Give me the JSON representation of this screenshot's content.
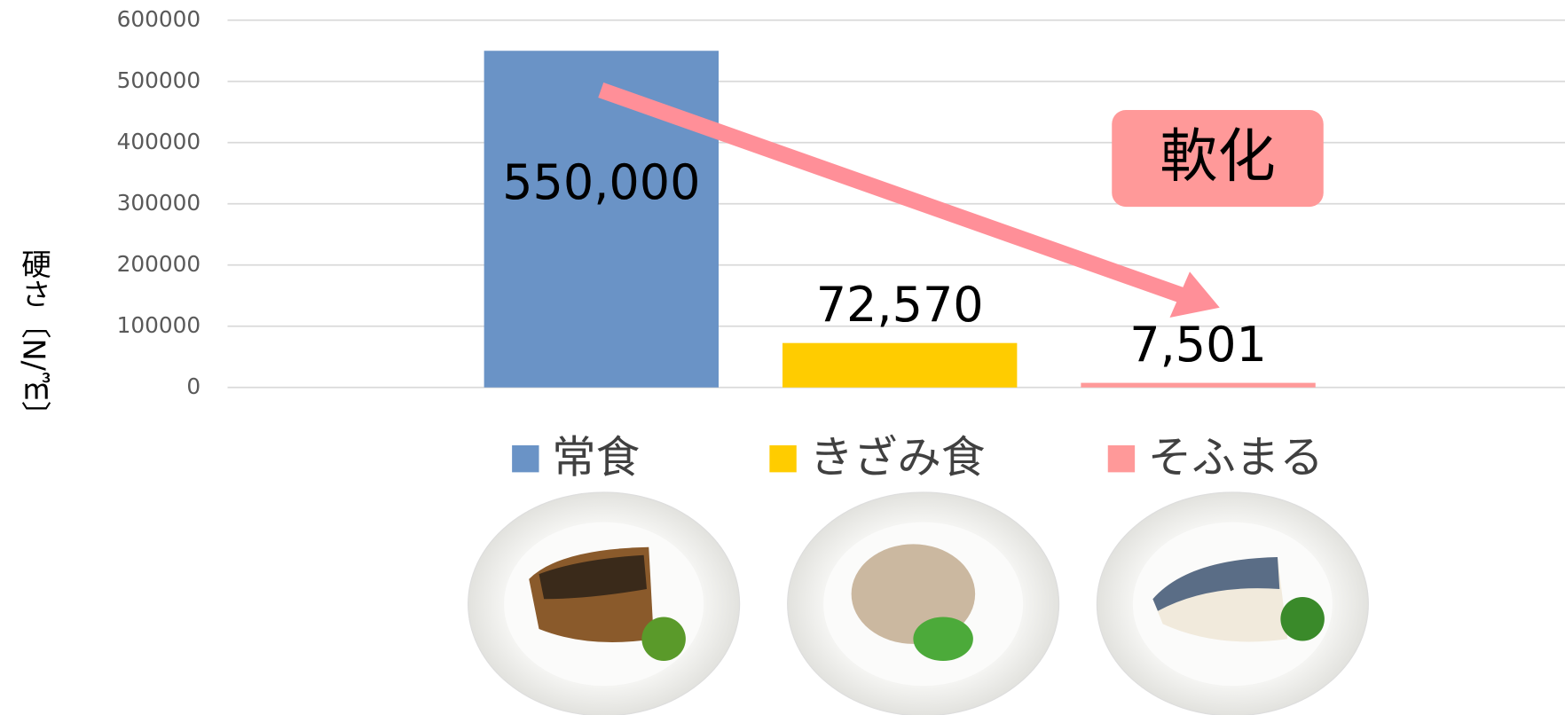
{
  "chart_data": {
    "type": "bar",
    "y_label": "硬さ〔N/㎥〕",
    "categories": [
      "常食",
      "きざみ食",
      "そふまる"
    ],
    "values": [
      550000,
      72570,
      7501
    ],
    "value_labels": [
      "550,000",
      "72,570",
      "7,501"
    ],
    "colors": [
      "#6a93c6",
      "#ffcc00",
      "#ff9999"
    ],
    "ylim": [
      0,
      600000
    ],
    "yticks": [
      0,
      100000,
      200000,
      300000,
      400000,
      500000,
      600000
    ],
    "grid": true,
    "annotation": "軟化"
  }
}
